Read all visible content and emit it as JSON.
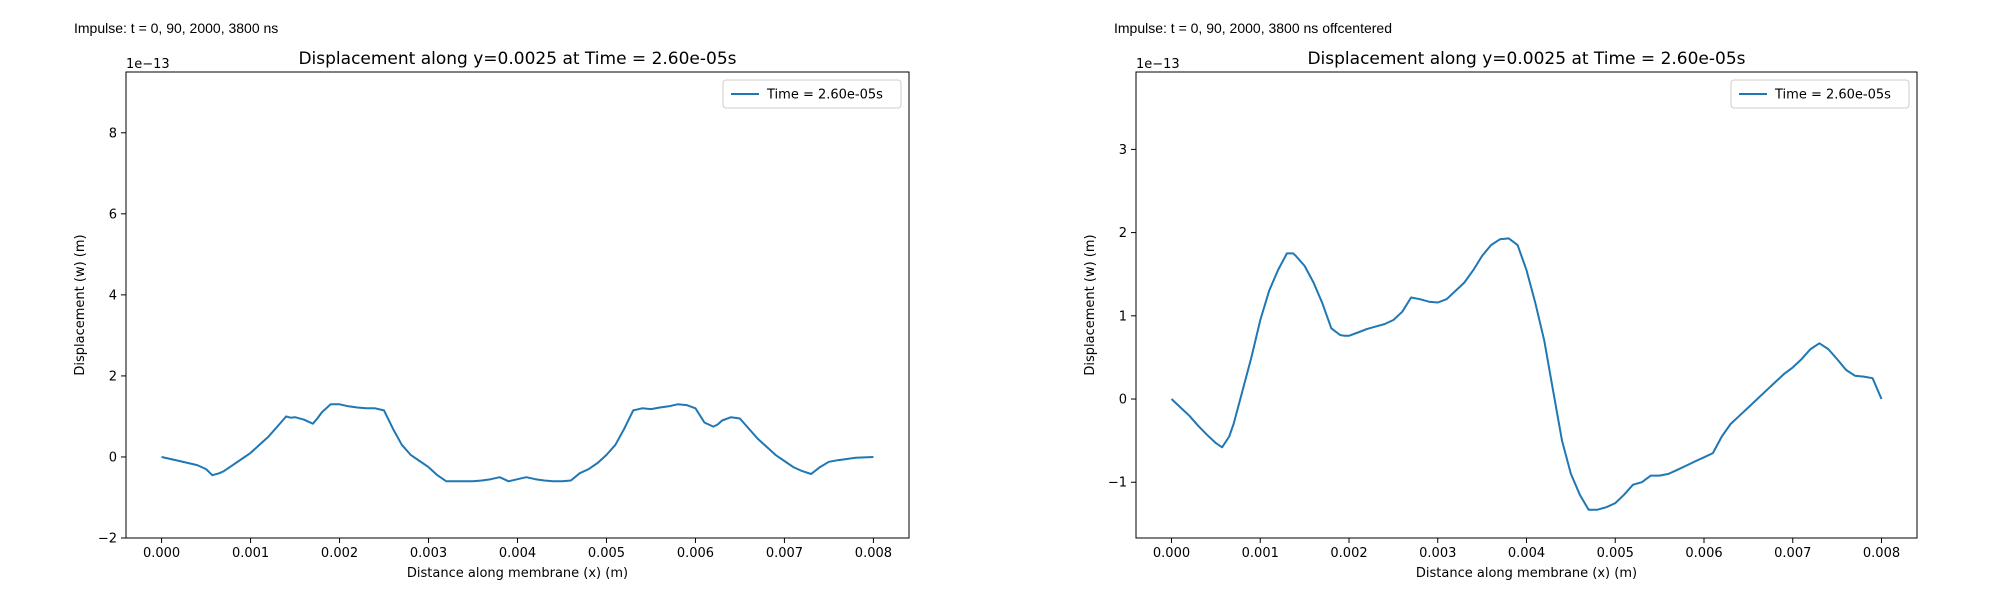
{
  "panels": [
    {
      "caption": "Impulse: t = 0, 90, 2000, 3800 ns"
    },
    {
      "caption": "Impulse: t = 0, 90, 2000, 3800 ns offcentered"
    }
  ],
  "chart_data": [
    {
      "type": "line",
      "title": "Displacement along y=0.0025 at Time = 2.60e-05s",
      "xlabel": "Distance along membrane (x) (m)",
      "ylabel": "Displacement (w) (m)",
      "offset_text": "1e−13",
      "xlim": [
        -0.0004,
        0.0084
      ],
      "ylim": [
        -2.0,
        9.5
      ],
      "xticks": [
        0.0,
        0.001,
        0.002,
        0.003,
        0.004,
        0.005,
        0.006,
        0.007,
        0.008
      ],
      "xtick_labels": [
        "0.000",
        "0.001",
        "0.002",
        "0.003",
        "0.004",
        "0.005",
        "0.006",
        "0.007",
        "0.008"
      ],
      "yticks": [
        -2,
        0,
        2,
        4,
        6,
        8
      ],
      "ytick_labels": [
        "−2",
        "0",
        "2",
        "4",
        "6",
        "8"
      ],
      "y_scale_note": "y values in units of 1e-13 m",
      "grid": false,
      "legend": "top-right",
      "color": "#1f77b4",
      "series": [
        {
          "name": "Time = 2.60e-05s",
          "x": [
            0.0,
            0.0002,
            0.0004,
            0.0005,
            0.00057,
            0.00065,
            0.0007,
            0.0008,
            0.0009,
            0.001,
            0.0011,
            0.0012,
            0.0013,
            0.0014,
            0.00145,
            0.0015,
            0.0016,
            0.0017,
            0.00175,
            0.0018,
            0.0019,
            0.002,
            0.0021,
            0.0022,
            0.0023,
            0.0024,
            0.0025,
            0.0026,
            0.0027,
            0.0028,
            0.0029,
            0.003,
            0.0031,
            0.0032,
            0.0033,
            0.0034,
            0.0035,
            0.0036,
            0.0037,
            0.0038,
            0.0039,
            0.004,
            0.0041,
            0.0042,
            0.0043,
            0.0044,
            0.0045,
            0.0046,
            0.0047,
            0.0048,
            0.0049,
            0.005,
            0.0051,
            0.0052,
            0.0053,
            0.0054,
            0.0055,
            0.0056,
            0.0057,
            0.0058,
            0.0059,
            0.006,
            0.0061,
            0.0062,
            0.00625,
            0.0063,
            0.0064,
            0.0065,
            0.0066,
            0.0067,
            0.0068,
            0.0069,
            0.007,
            0.0071,
            0.0072,
            0.0073,
            0.0074,
            0.0075,
            0.0076,
            0.0077,
            0.0078,
            0.008
          ],
          "y": [
            0.0,
            -0.1,
            -0.2,
            -0.3,
            -0.45,
            -0.4,
            -0.35,
            -0.2,
            -0.05,
            0.1,
            0.3,
            0.5,
            0.75,
            1.0,
            0.97,
            0.98,
            0.92,
            0.82,
            0.95,
            1.1,
            1.3,
            1.3,
            1.25,
            1.22,
            1.2,
            1.2,
            1.15,
            0.7,
            0.3,
            0.05,
            -0.1,
            -0.25,
            -0.45,
            -0.6,
            -0.6,
            -0.6,
            -0.6,
            -0.58,
            -0.55,
            -0.5,
            -0.6,
            -0.55,
            -0.5,
            -0.55,
            -0.58,
            -0.6,
            -0.6,
            -0.58,
            -0.4,
            -0.3,
            -0.15,
            0.05,
            0.3,
            0.7,
            1.15,
            1.2,
            1.18,
            1.22,
            1.25,
            1.3,
            1.28,
            1.2,
            0.85,
            0.75,
            0.8,
            0.9,
            0.98,
            0.95,
            0.7,
            0.45,
            0.25,
            0.05,
            -0.1,
            -0.25,
            -0.35,
            -0.42,
            -0.25,
            -0.12,
            -0.08,
            -0.05,
            -0.02,
            0.0
          ]
        }
      ]
    },
    {
      "type": "line",
      "title": "Displacement along y=0.0025 at Time = 2.60e-05s",
      "xlabel": "Distance along membrane (x) (m)",
      "ylabel": "Displacement (w) (m)",
      "offset_text": "1e−13",
      "xlim": [
        -0.0004,
        0.0084
      ],
      "ylim": [
        -1.67,
        3.93
      ],
      "xticks": [
        0.0,
        0.001,
        0.002,
        0.003,
        0.004,
        0.005,
        0.006,
        0.007,
        0.008
      ],
      "xtick_labels": [
        "0.000",
        "0.001",
        "0.002",
        "0.003",
        "0.004",
        "0.005",
        "0.006",
        "0.007",
        "0.008"
      ],
      "yticks": [
        -1,
        0,
        1,
        2,
        3
      ],
      "ytick_labels": [
        "−1",
        "0",
        "1",
        "2",
        "3"
      ],
      "y_scale_note": "y values in units of 1e-13 m",
      "grid": false,
      "legend": "top-right",
      "color": "#1f77b4",
      "series": [
        {
          "name": "Time = 2.60e-05s",
          "x": [
            0.0,
            0.0001,
            0.0002,
            0.0003,
            0.0004,
            0.0005,
            0.00057,
            0.00065,
            0.0007,
            0.0008,
            0.0009,
            0.001,
            0.0011,
            0.0012,
            0.0013,
            0.00137,
            0.0014,
            0.0015,
            0.0016,
            0.0017,
            0.0018,
            0.0019,
            0.00195,
            0.002,
            0.0021,
            0.0022,
            0.0023,
            0.0024,
            0.0025,
            0.0026,
            0.0027,
            0.0028,
            0.0029,
            0.003,
            0.0031,
            0.0032,
            0.0033,
            0.0034,
            0.0035,
            0.0036,
            0.0037,
            0.0038,
            0.0039,
            0.004,
            0.0041,
            0.0042,
            0.0043,
            0.0044,
            0.0045,
            0.0046,
            0.0047,
            0.0048,
            0.0049,
            0.005,
            0.0051,
            0.0052,
            0.0053,
            0.0054,
            0.0055,
            0.0056,
            0.0057,
            0.0058,
            0.0059,
            0.006,
            0.0061,
            0.0062,
            0.0063,
            0.0064,
            0.0065,
            0.0066,
            0.0067,
            0.0068,
            0.0069,
            0.007,
            0.0071,
            0.0072,
            0.0073,
            0.0074,
            0.0075,
            0.0076,
            0.0077,
            0.0078,
            0.0079,
            0.008
          ],
          "y": [
            0.0,
            -0.1,
            -0.2,
            -0.32,
            -0.43,
            -0.53,
            -0.58,
            -0.45,
            -0.3,
            0.1,
            0.5,
            0.95,
            1.3,
            1.55,
            1.75,
            1.75,
            1.72,
            1.6,
            1.4,
            1.15,
            0.85,
            0.77,
            0.76,
            0.76,
            0.8,
            0.84,
            0.87,
            0.9,
            0.95,
            1.05,
            1.22,
            1.2,
            1.17,
            1.16,
            1.2,
            1.3,
            1.4,
            1.55,
            1.72,
            1.85,
            1.92,
            1.93,
            1.85,
            1.55,
            1.15,
            0.7,
            0.1,
            -0.5,
            -0.9,
            -1.15,
            -1.33,
            -1.33,
            -1.3,
            -1.25,
            -1.15,
            -1.03,
            -1.0,
            -0.92,
            -0.92,
            -0.9,
            -0.85,
            -0.8,
            -0.75,
            -0.7,
            -0.65,
            -0.45,
            -0.3,
            -0.2,
            -0.1,
            0.0,
            0.1,
            0.2,
            0.3,
            0.38,
            0.48,
            0.6,
            0.67,
            0.6,
            0.48,
            0.35,
            0.28,
            0.27,
            0.25,
            0.0
          ]
        }
      ]
    }
  ]
}
